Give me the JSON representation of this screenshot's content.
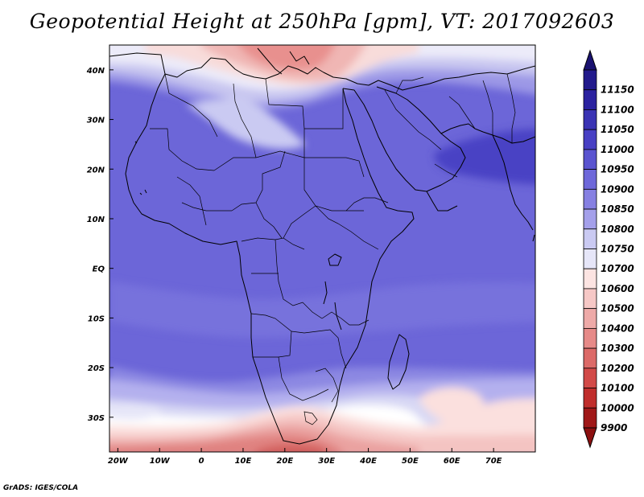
{
  "title": "Geopotential Height at 250hPa [gpm], VT: 2017092603",
  "footer": "GrADS: IGES/COLA",
  "map": {
    "lon_range": [
      -22,
      80
    ],
    "lat_range": [
      -37,
      45
    ],
    "lon_ticks": [
      {
        "lon": -20,
        "label": "20W"
      },
      {
        "lon": -10,
        "label": "10W"
      },
      {
        "lon": 0,
        "label": "0"
      },
      {
        "lon": 10,
        "label": "10E"
      },
      {
        "lon": 20,
        "label": "20E"
      },
      {
        "lon": 30,
        "label": "30E"
      },
      {
        "lon": 40,
        "label": "40E"
      },
      {
        "lon": 50,
        "label": "50E"
      },
      {
        "lon": 60,
        "label": "60E"
      },
      {
        "lon": 70,
        "label": "70E"
      }
    ],
    "lat_ticks": [
      {
        "lat": 40,
        "label": "40N"
      },
      {
        "lat": 30,
        "label": "30N"
      },
      {
        "lat": 20,
        "label": "20N"
      },
      {
        "lat": 10,
        "label": "10N"
      },
      {
        "lat": 0,
        "label": "EQ"
      },
      {
        "lat": -10,
        "label": "10S"
      },
      {
        "lat": -20,
        "label": "20S"
      },
      {
        "lat": -30,
        "label": "30S"
      }
    ]
  },
  "colorbar": {
    "levels": [
      {
        "label": "11150",
        "color": "#221a8c"
      },
      {
        "label": "11100",
        "color": "#2b22a0"
      },
      {
        "label": "11050",
        "color": "#3a33b4"
      },
      {
        "label": "11000",
        "color": "#4840c4"
      },
      {
        "label": "10950",
        "color": "#5a54d0"
      },
      {
        "label": "10900",
        "color": "#6e68da"
      },
      {
        "label": "10850",
        "color": "#8680e2"
      },
      {
        "label": "10800",
        "color": "#a4a0ea"
      },
      {
        "label": "10750",
        "color": "#cacaf2"
      },
      {
        "label": "10700",
        "color": "#e6e6f8"
      },
      {
        "label": "10600",
        "color": "#fce4e2"
      },
      {
        "label": "10500",
        "color": "#f6c8c6"
      },
      {
        "label": "10400",
        "color": "#eeaaa8"
      },
      {
        "label": "10300",
        "color": "#e68a88"
      },
      {
        "label": "10200",
        "color": "#dc6a68"
      },
      {
        "label": "10100",
        "color": "#d24a48"
      },
      {
        "label": "10000",
        "color": "#c02e2c"
      },
      {
        "label": "9900",
        "color": "#a01818"
      }
    ],
    "top_arrow_color": "#1a1270",
    "bottom_arrow_color": "#8c1010"
  }
}
